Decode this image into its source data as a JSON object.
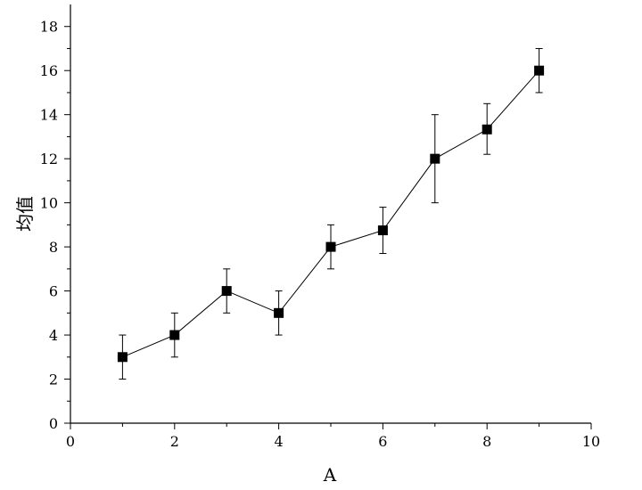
{
  "chart_data": {
    "type": "line",
    "title": "",
    "xlabel": "A",
    "ylabel": "均值",
    "xlim": [
      0,
      10
    ],
    "ylim": [
      0,
      19
    ],
    "xticks": [
      0,
      2,
      4,
      6,
      8,
      10
    ],
    "yticks": [
      0,
      2,
      4,
      6,
      8,
      10,
      12,
      14,
      16,
      18
    ],
    "grid": false,
    "marker": "square",
    "line_color": "#000000",
    "series": [
      {
        "x": [
          1,
          2,
          3,
          4,
          5,
          6,
          7,
          8,
          9
        ],
        "y": [
          3,
          4,
          6,
          5,
          8,
          8.75,
          12,
          13.33,
          16
        ],
        "error_low": [
          2,
          3,
          5,
          4,
          7,
          7.7,
          10,
          12.2,
          15
        ],
        "error_high": [
          4,
          5,
          7,
          6,
          9,
          9.8,
          14,
          14.5,
          17
        ]
      }
    ]
  }
}
